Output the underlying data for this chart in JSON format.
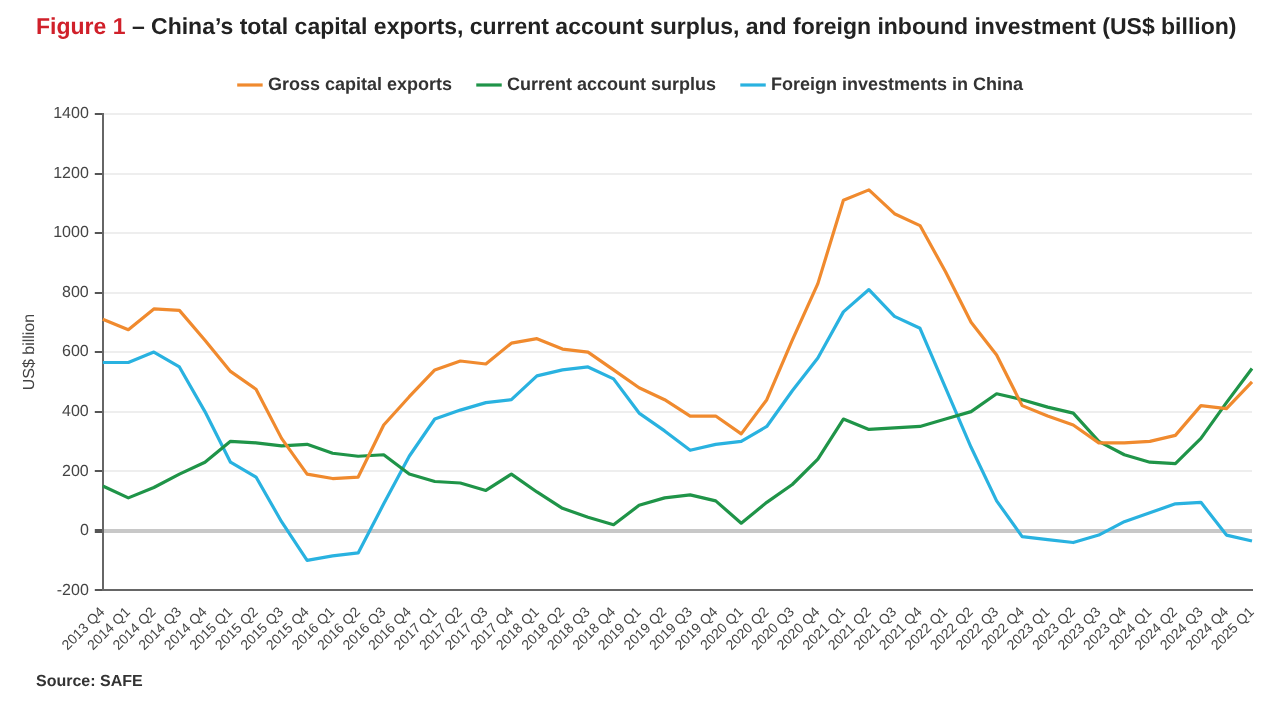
{
  "chart_data": {
    "type": "line",
    "title": "Figure 1 – China’s total capital exports, current account surplus, and foreign inbound investment (US$ billion)",
    "ylabel": "US$ billion",
    "categories": [
      "2013 Q4",
      "2014 Q1",
      "2014 Q2",
      "2014 Q3",
      "2014 Q4",
      "2015 Q1",
      "2015 Q2",
      "2015 Q3",
      "2015 Q4",
      "2016 Q1",
      "2016 Q2",
      "2016 Q3",
      "2016 Q4",
      "2017 Q1",
      "2017 Q2",
      "2017 Q3",
      "2017 Q4",
      "2018 Q1",
      "2018 Q2",
      "2018 Q3",
      "2018 Q4",
      "2019 Q1",
      "2019 Q2",
      "2019 Q3",
      "2019 Q4",
      "2020 Q1",
      "2020 Q2",
      "2020 Q3",
      "2020 Q4",
      "2021 Q1",
      "2021 Q2",
      "2021 Q3",
      "2021 Q4",
      "2022 Q1",
      "2022 Q2",
      "2022 Q3",
      "2022 Q4",
      "2023 Q1",
      "2023 Q2",
      "2023 Q3",
      "2023 Q4",
      "2024 Q1",
      "2024 Q2",
      "2024 Q3",
      "2024 Q4",
      "2025 Q1"
    ],
    "series": [
      {
        "name": "Gross capital exports",
        "color": "#f08a2e",
        "values": [
          710,
          675,
          745,
          740,
          640,
          535,
          475,
          310,
          190,
          175,
          180,
          355,
          450,
          540,
          570,
          560,
          630,
          645,
          610,
          600,
          540,
          480,
          440,
          385,
          385,
          325,
          440,
          640,
          830,
          1110,
          1145,
          1065,
          1025,
          870,
          700,
          590,
          420,
          385,
          355,
          295,
          295,
          300,
          320,
          420,
          410,
          500
        ]
      },
      {
        "name": "Current account surplus",
        "color": "#1f9448",
        "values": [
          150,
          110,
          145,
          190,
          230,
          300,
          295,
          285,
          290,
          260,
          250,
          255,
          190,
          165,
          160,
          135,
          190,
          130,
          75,
          45,
          20,
          85,
          110,
          120,
          100,
          25,
          95,
          155,
          240,
          375,
          340,
          345,
          350,
          375,
          400,
          460,
          440,
          415,
          395,
          300,
          255,
          230,
          225,
          310,
          430,
          545
        ]
      },
      {
        "name": "Foreign investments in China",
        "color": "#29b2e0",
        "values": [
          565,
          565,
          600,
          550,
          400,
          230,
          180,
          30,
          -100,
          -85,
          -75,
          90,
          250,
          375,
          405,
          430,
          440,
          520,
          540,
          550,
          510,
          395,
          335,
          270,
          290,
          300,
          350,
          470,
          580,
          735,
          810,
          720,
          680,
          480,
          280,
          100,
          -20,
          -30,
          -40,
          -15,
          30,
          60,
          90,
          95,
          -15,
          -35
        ]
      }
    ],
    "ylim": [
      -200,
      1400
    ],
    "yticks": [
      -200,
      0,
      200,
      400,
      600,
      800,
      1000,
      1200,
      1400
    ],
    "grid": "y",
    "legend": "top",
    "marker": "none",
    "line_style": "solid",
    "annotations": [
      "Source: SAFE"
    ]
  }
}
